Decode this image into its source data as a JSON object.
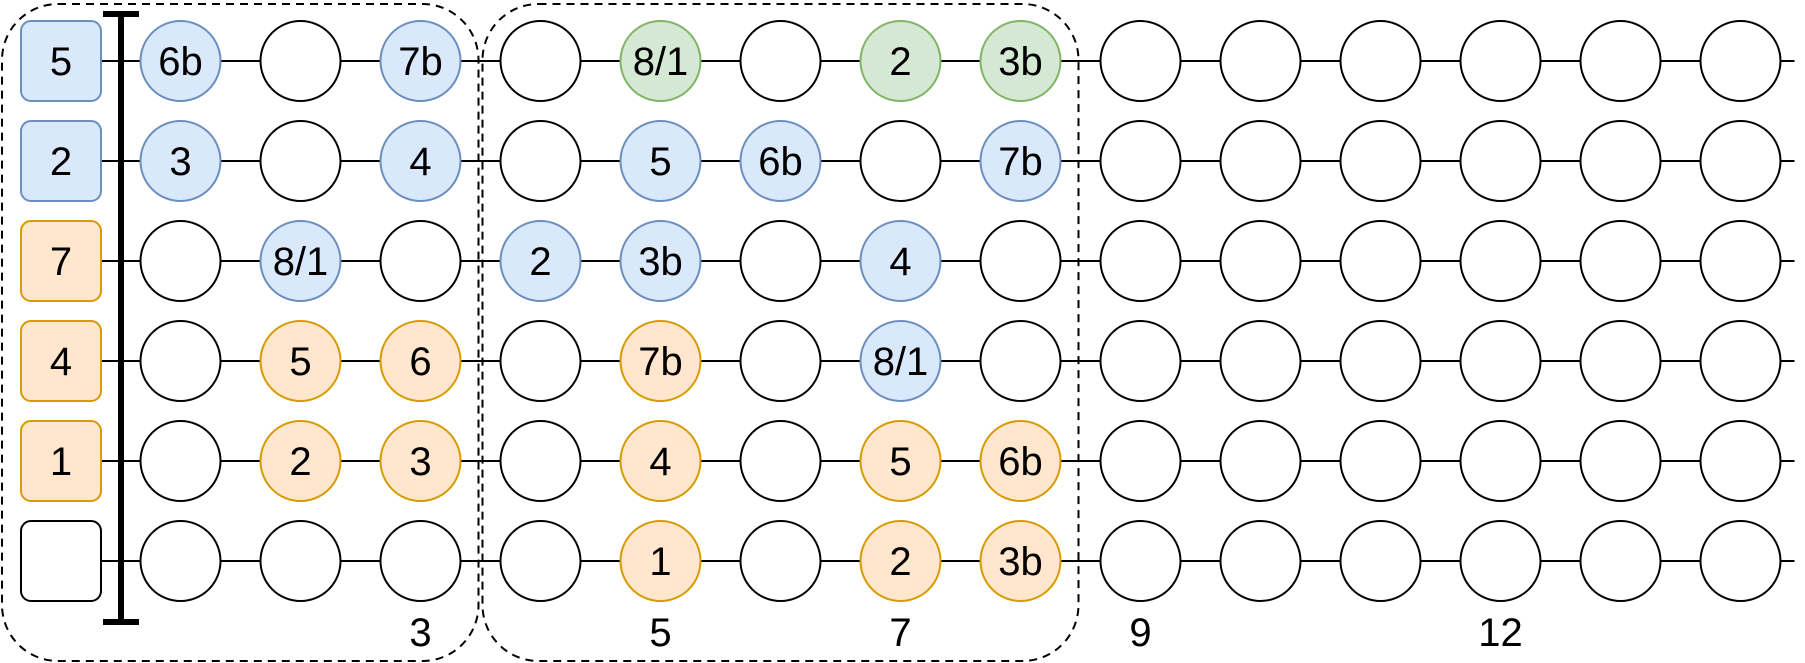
{
  "colors": {
    "blue_fill": "#dae8fc",
    "blue_stroke": "#6c8ebf",
    "green_fill": "#d5e8d4",
    "green_stroke": "#82b366",
    "orange_fill": "#ffe6cc",
    "orange_stroke": "#d79b00",
    "empty_fill": "#ffffff",
    "line": "#000000"
  },
  "open_strings": [
    {
      "label": "5",
      "color": "blue"
    },
    {
      "label": "2",
      "color": "blue"
    },
    {
      "label": "7",
      "color": "orange"
    },
    {
      "label": "4",
      "color": "orange"
    },
    {
      "label": "1",
      "color": "orange"
    },
    {
      "label": "",
      "color": "empty"
    }
  ],
  "fretboard": [
    [
      {
        "label": "6b",
        "color": "blue"
      },
      {
        "label": "",
        "color": "empty"
      },
      {
        "label": "7b",
        "color": "blue"
      },
      {
        "label": "",
        "color": "empty"
      },
      {
        "label": "8/1",
        "color": "green"
      },
      {
        "label": "",
        "color": "empty"
      },
      {
        "label": "2",
        "color": "green"
      },
      {
        "label": "3b",
        "color": "green"
      },
      {
        "label": "",
        "color": "empty"
      },
      {
        "label": "",
        "color": "empty"
      },
      {
        "label": "",
        "color": "empty"
      },
      {
        "label": "",
        "color": "empty"
      },
      {
        "label": "",
        "color": "empty"
      },
      {
        "label": "",
        "color": "empty"
      }
    ],
    [
      {
        "label": "3",
        "color": "blue"
      },
      {
        "label": "",
        "color": "empty"
      },
      {
        "label": "4",
        "color": "blue"
      },
      {
        "label": "",
        "color": "empty"
      },
      {
        "label": "5",
        "color": "blue"
      },
      {
        "label": "6b",
        "color": "blue"
      },
      {
        "label": "",
        "color": "empty"
      },
      {
        "label": "7b",
        "color": "blue"
      },
      {
        "label": "",
        "color": "empty"
      },
      {
        "label": "",
        "color": "empty"
      },
      {
        "label": "",
        "color": "empty"
      },
      {
        "label": "",
        "color": "empty"
      },
      {
        "label": "",
        "color": "empty"
      },
      {
        "label": "",
        "color": "empty"
      }
    ],
    [
      {
        "label": "",
        "color": "empty"
      },
      {
        "label": "8/1",
        "color": "blue"
      },
      {
        "label": "",
        "color": "empty"
      },
      {
        "label": "2",
        "color": "blue"
      },
      {
        "label": "3b",
        "color": "blue"
      },
      {
        "label": "",
        "color": "empty"
      },
      {
        "label": "4",
        "color": "blue"
      },
      {
        "label": "",
        "color": "empty"
      },
      {
        "label": "",
        "color": "empty"
      },
      {
        "label": "",
        "color": "empty"
      },
      {
        "label": "",
        "color": "empty"
      },
      {
        "label": "",
        "color": "empty"
      },
      {
        "label": "",
        "color": "empty"
      },
      {
        "label": "",
        "color": "empty"
      }
    ],
    [
      {
        "label": "",
        "color": "empty"
      },
      {
        "label": "5",
        "color": "orange"
      },
      {
        "label": "6",
        "color": "orange"
      },
      {
        "label": "",
        "color": "empty"
      },
      {
        "label": "7b",
        "color": "orange"
      },
      {
        "label": "",
        "color": "empty"
      },
      {
        "label": "8/1",
        "color": "blue"
      },
      {
        "label": "",
        "color": "empty"
      },
      {
        "label": "",
        "color": "empty"
      },
      {
        "label": "",
        "color": "empty"
      },
      {
        "label": "",
        "color": "empty"
      },
      {
        "label": "",
        "color": "empty"
      },
      {
        "label": "",
        "color": "empty"
      },
      {
        "label": "",
        "color": "empty"
      }
    ],
    [
      {
        "label": "",
        "color": "empty"
      },
      {
        "label": "2",
        "color": "orange"
      },
      {
        "label": "3",
        "color": "orange"
      },
      {
        "label": "",
        "color": "empty"
      },
      {
        "label": "4",
        "color": "orange"
      },
      {
        "label": "",
        "color": "empty"
      },
      {
        "label": "5",
        "color": "orange"
      },
      {
        "label": "6b",
        "color": "orange"
      },
      {
        "label": "",
        "color": "empty"
      },
      {
        "label": "",
        "color": "empty"
      },
      {
        "label": "",
        "color": "empty"
      },
      {
        "label": "",
        "color": "empty"
      },
      {
        "label": "",
        "color": "empty"
      },
      {
        "label": "",
        "color": "empty"
      }
    ],
    [
      {
        "label": "",
        "color": "empty"
      },
      {
        "label": "",
        "color": "empty"
      },
      {
        "label": "",
        "color": "empty"
      },
      {
        "label": "",
        "color": "empty"
      },
      {
        "label": "1",
        "color": "orange"
      },
      {
        "label": "",
        "color": "empty"
      },
      {
        "label": "2",
        "color": "orange"
      },
      {
        "label": "3b",
        "color": "orange"
      },
      {
        "label": "",
        "color": "empty"
      },
      {
        "label": "",
        "color": "empty"
      },
      {
        "label": "",
        "color": "empty"
      },
      {
        "label": "",
        "color": "empty"
      },
      {
        "label": "",
        "color": "empty"
      },
      {
        "label": "",
        "color": "empty"
      }
    ]
  ],
  "fret_markers": [
    {
      "fret": 3,
      "label": "3"
    },
    {
      "fret": 5,
      "label": "5"
    },
    {
      "fret": 7,
      "label": "7"
    },
    {
      "fret": 9,
      "label": "9"
    },
    {
      "fret": 12,
      "label": "12"
    }
  ],
  "position_boxes": [
    {
      "name": "box-1",
      "from_fret": 0,
      "to_fret": 3
    },
    {
      "name": "box-2",
      "from_fret": 4,
      "to_fret": 8
    }
  ]
}
